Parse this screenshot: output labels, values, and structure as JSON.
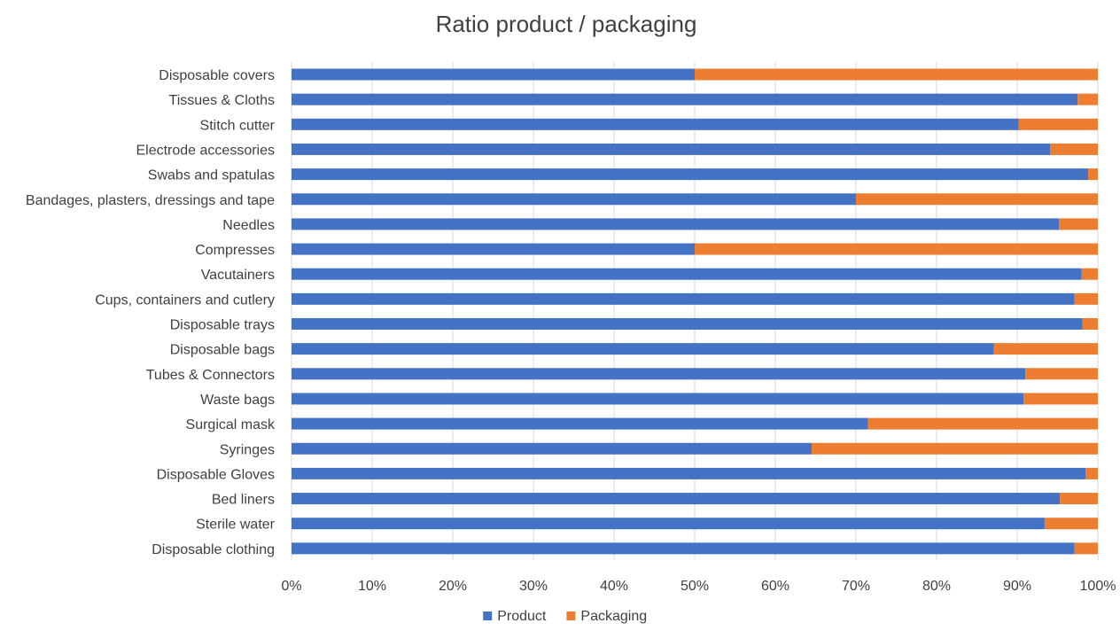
{
  "chart_data": {
    "type": "bar",
    "orientation": "horizontal",
    "stacked": "percent",
    "title": "Ratio product / packaging",
    "xlabel": "",
    "ylabel": "",
    "xlim": [
      0,
      100
    ],
    "x_ticks": [
      "0%",
      "10%",
      "20%",
      "30%",
      "40%",
      "50%",
      "60%",
      "70%",
      "80%",
      "90%",
      "100%"
    ],
    "grid": "vertical",
    "legend": "bottom",
    "categories": [
      "Disposable covers",
      "Tissues & Cloths",
      "Stitch cutter",
      "Electrode accessories",
      "Swabs and spatulas",
      "Bandages, plasters, dressings and tape",
      "Needles",
      "Compresses",
      "Vacutainers",
      "Cups, containers and cutlery",
      "Disposable trays",
      "Disposable bags",
      "Tubes & Connectors",
      "Waste bags",
      "Surgical mask",
      "Syringes",
      "Disposable Gloves",
      "Bed liners",
      "Sterile water",
      "Disposable clothing"
    ],
    "series": [
      {
        "name": "Product",
        "color": "#4472c4",
        "values": [
          50,
          97.5,
          90.2,
          94.1,
          98.8,
          70,
          95.2,
          50,
          98,
          97.1,
          98.1,
          87.1,
          91,
          90.8,
          71.5,
          64.5,
          98.5,
          95.3,
          93.4,
          97.1
        ]
      },
      {
        "name": "Packaging",
        "color": "#ed7d31",
        "values": [
          50,
          2.5,
          9.8,
          5.9,
          1.2,
          30,
          4.8,
          50,
          2,
          2.9,
          1.9,
          12.9,
          9,
          9.2,
          28.5,
          35.5,
          1.5,
          4.7,
          6.6,
          2.9
        ]
      }
    ]
  }
}
